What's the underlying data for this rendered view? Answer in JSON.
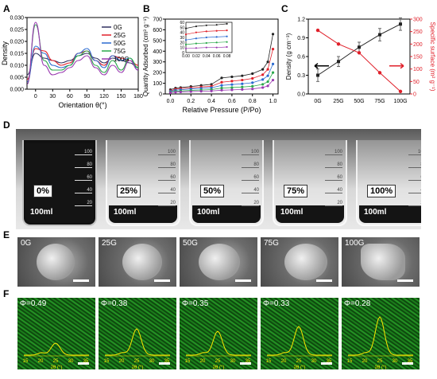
{
  "panels": {
    "A": "A",
    "B": "B",
    "C": "C",
    "D": "D",
    "E": "E",
    "F": "F"
  },
  "chart_data": [
    {
      "type": "line",
      "panel": "A",
      "ylabel": "Density",
      "xlabel": "Orientation θ(°)",
      "xlim": [
        -15,
        180
      ],
      "ylim": [
        0,
        0.03
      ],
      "yticks": [
        "0.000",
        "0.005",
        "0.010",
        "0.015",
        "0.020",
        "0.025",
        "0.030"
      ],
      "xticks": [
        "0",
        "30",
        "60",
        "90",
        "120",
        "150",
        "180"
      ],
      "legend": "top-right",
      "x": [
        -15,
        0,
        15,
        30,
        45,
        60,
        75,
        90,
        105,
        120,
        135,
        150,
        165,
        180
      ],
      "series": [
        {
          "name": "0G",
          "color": "#303060",
          "values": [
            0.006,
            0.015,
            0.013,
            0.012,
            0.011,
            0.012,
            0.014,
            0.015,
            0.013,
            0.011,
            0.013,
            0.012,
            0.011,
            0.009
          ]
        },
        {
          "name": "25G",
          "color": "#e0202a",
          "values": [
            0.004,
            0.017,
            0.016,
            0.012,
            0.01,
            0.011,
            0.015,
            0.016,
            0.012,
            0.01,
            0.014,
            0.013,
            0.012,
            0.01
          ]
        },
        {
          "name": "50G",
          "color": "#2a6ad0",
          "values": [
            0.003,
            0.018,
            0.015,
            0.01,
            0.009,
            0.01,
            0.015,
            0.017,
            0.012,
            0.009,
            0.014,
            0.012,
            0.013,
            0.008
          ]
        },
        {
          "name": "75G",
          "color": "#2aa84a",
          "values": [
            0.002,
            0.027,
            0.012,
            0.008,
            0.008,
            0.01,
            0.014,
            0.016,
            0.01,
            0.007,
            0.012,
            0.008,
            0.013,
            0.009
          ]
        },
        {
          "name": "100G",
          "color": "#9a3ab0",
          "values": [
            0.002,
            0.028,
            0.01,
            0.006,
            0.007,
            0.009,
            0.012,
            0.014,
            0.009,
            0.006,
            0.01,
            0.007,
            0.012,
            0.008
          ]
        }
      ]
    },
    {
      "type": "scatter",
      "panel": "B",
      "ylabel": "Quantity Adsorbed (cm³ g⁻¹)",
      "xlabel": "Relative Pressure (P/Po)",
      "xlim": [
        -0.05,
        1.05
      ],
      "ylim": [
        0,
        700
      ],
      "yticks": [
        "0",
        "100",
        "200",
        "300",
        "400",
        "500",
        "600",
        "700"
      ],
      "xticks": [
        "0.0",
        "0.2",
        "0.4",
        "0.6",
        "0.8",
        "1.0"
      ],
      "x": [
        0.0,
        0.05,
        0.1,
        0.2,
        0.3,
        0.4,
        0.5,
        0.6,
        0.7,
        0.8,
        0.9,
        0.95,
        1.0
      ],
      "series": [
        {
          "color": "#222222",
          "values": [
            40,
            55,
            60,
            70,
            80,
            90,
            150,
            160,
            170,
            190,
            230,
            300,
            560
          ]
        },
        {
          "color": "#e0202a",
          "values": [
            30,
            45,
            50,
            58,
            65,
            72,
            110,
            120,
            130,
            145,
            180,
            230,
            420
          ]
        },
        {
          "color": "#2a6ad0",
          "values": [
            25,
            35,
            40,
            47,
            52,
            58,
            80,
            88,
            95,
            105,
            135,
            170,
            280
          ]
        },
        {
          "color": "#2aa84a",
          "values": [
            18,
            25,
            28,
            33,
            37,
            41,
            55,
            60,
            65,
            72,
            90,
            115,
            200
          ]
        },
        {
          "color": "#9a3ab0",
          "values": [
            12,
            17,
            19,
            22,
            25,
            28,
            35,
            38,
            42,
            47,
            60,
            75,
            130
          ]
        }
      ],
      "inset": {
        "xticks": [
          "0.00",
          "0.02",
          "0.04",
          "0.06",
          "0.08"
        ],
        "yticks": [
          "0",
          "10",
          "20",
          "30",
          "40",
          "50",
          "60"
        ],
        "x": [
          0.0,
          0.02,
          0.04,
          0.06,
          0.08
        ],
        "ylim": [
          0,
          60
        ],
        "xlim": [
          0,
          0.09
        ],
        "series": [
          {
            "color": "#222222",
            "values": [
              48,
              52,
              54,
              55,
              57
            ]
          },
          {
            "color": "#e0202a",
            "values": [
              36,
              40,
              42,
              43,
              44
            ]
          },
          {
            "color": "#2a6ad0",
            "values": [
              25,
              28,
              30,
              31,
              32
            ]
          },
          {
            "color": "#2aa84a",
            "values": [
              16,
              18,
              19,
              20,
              21
            ]
          },
          {
            "color": "#9a3ab0",
            "values": [
              8,
              9,
              10,
              10,
              11
            ]
          }
        ]
      }
    },
    {
      "type": "line",
      "panel": "C",
      "ylabel": "Density (g cm⁻³)",
      "y2label": "Specific surface (m² g⁻¹)",
      "categories": [
        "0G",
        "25G",
        "50G",
        "75G",
        "100G"
      ],
      "ylim": [
        0,
        1.2
      ],
      "yticks": [
        "0.0",
        "0.3",
        "0.6",
        "0.9",
        "1.2"
      ],
      "y2lim": [
        0,
        300
      ],
      "y2ticks": [
        "0",
        "50",
        "100",
        "150",
        "200",
        "250",
        "300"
      ],
      "series": [
        {
          "name": "Density",
          "color": "#222222",
          "values": [
            0.3,
            0.52,
            0.75,
            0.95,
            1.12
          ],
          "errors": [
            0.1,
            0.08,
            0.08,
            0.1,
            0.1
          ]
        },
        {
          "name": "Specific surface",
          "color": "#e0202a",
          "values": [
            255,
            200,
            165,
            85,
            10
          ]
        }
      ]
    }
  ],
  "beakers": [
    {
      "label": "0%",
      "volume": "100ml"
    },
    {
      "label": "25%",
      "volume": "100ml"
    },
    {
      "label": "50%",
      "volume": "100ml"
    },
    {
      "label": "75%",
      "volume": "100ml"
    },
    {
      "label": "100%",
      "volume": "100ml"
    }
  ],
  "sem_images": [
    {
      "label": "0G"
    },
    {
      "label": "25G"
    },
    {
      "label": "50G"
    },
    {
      "label": "75G"
    },
    {
      "label": "100G"
    }
  ],
  "confocal_images": [
    {
      "phi": "Φ=0.49"
    },
    {
      "phi": "Φ=0.38"
    },
    {
      "phi": "Φ=0.35"
    },
    {
      "phi": "Φ=0.33"
    },
    {
      "phi": "Φ=0.28"
    }
  ],
  "confocal_axis": {
    "xticks": [
      "15",
      "20",
      "25",
      "30",
      "35"
    ],
    "xlabel": "2θ (°)",
    "peak_heights": [
      0.25,
      0.55,
      0.5,
      0.6,
      0.8
    ]
  },
  "beaker_marks": [
    "100",
    "80",
    "60",
    "40",
    "20"
  ],
  "colors": {
    "accent_red": "#e0202a",
    "text": "#000000",
    "confocal_curve": "#ffe600"
  }
}
